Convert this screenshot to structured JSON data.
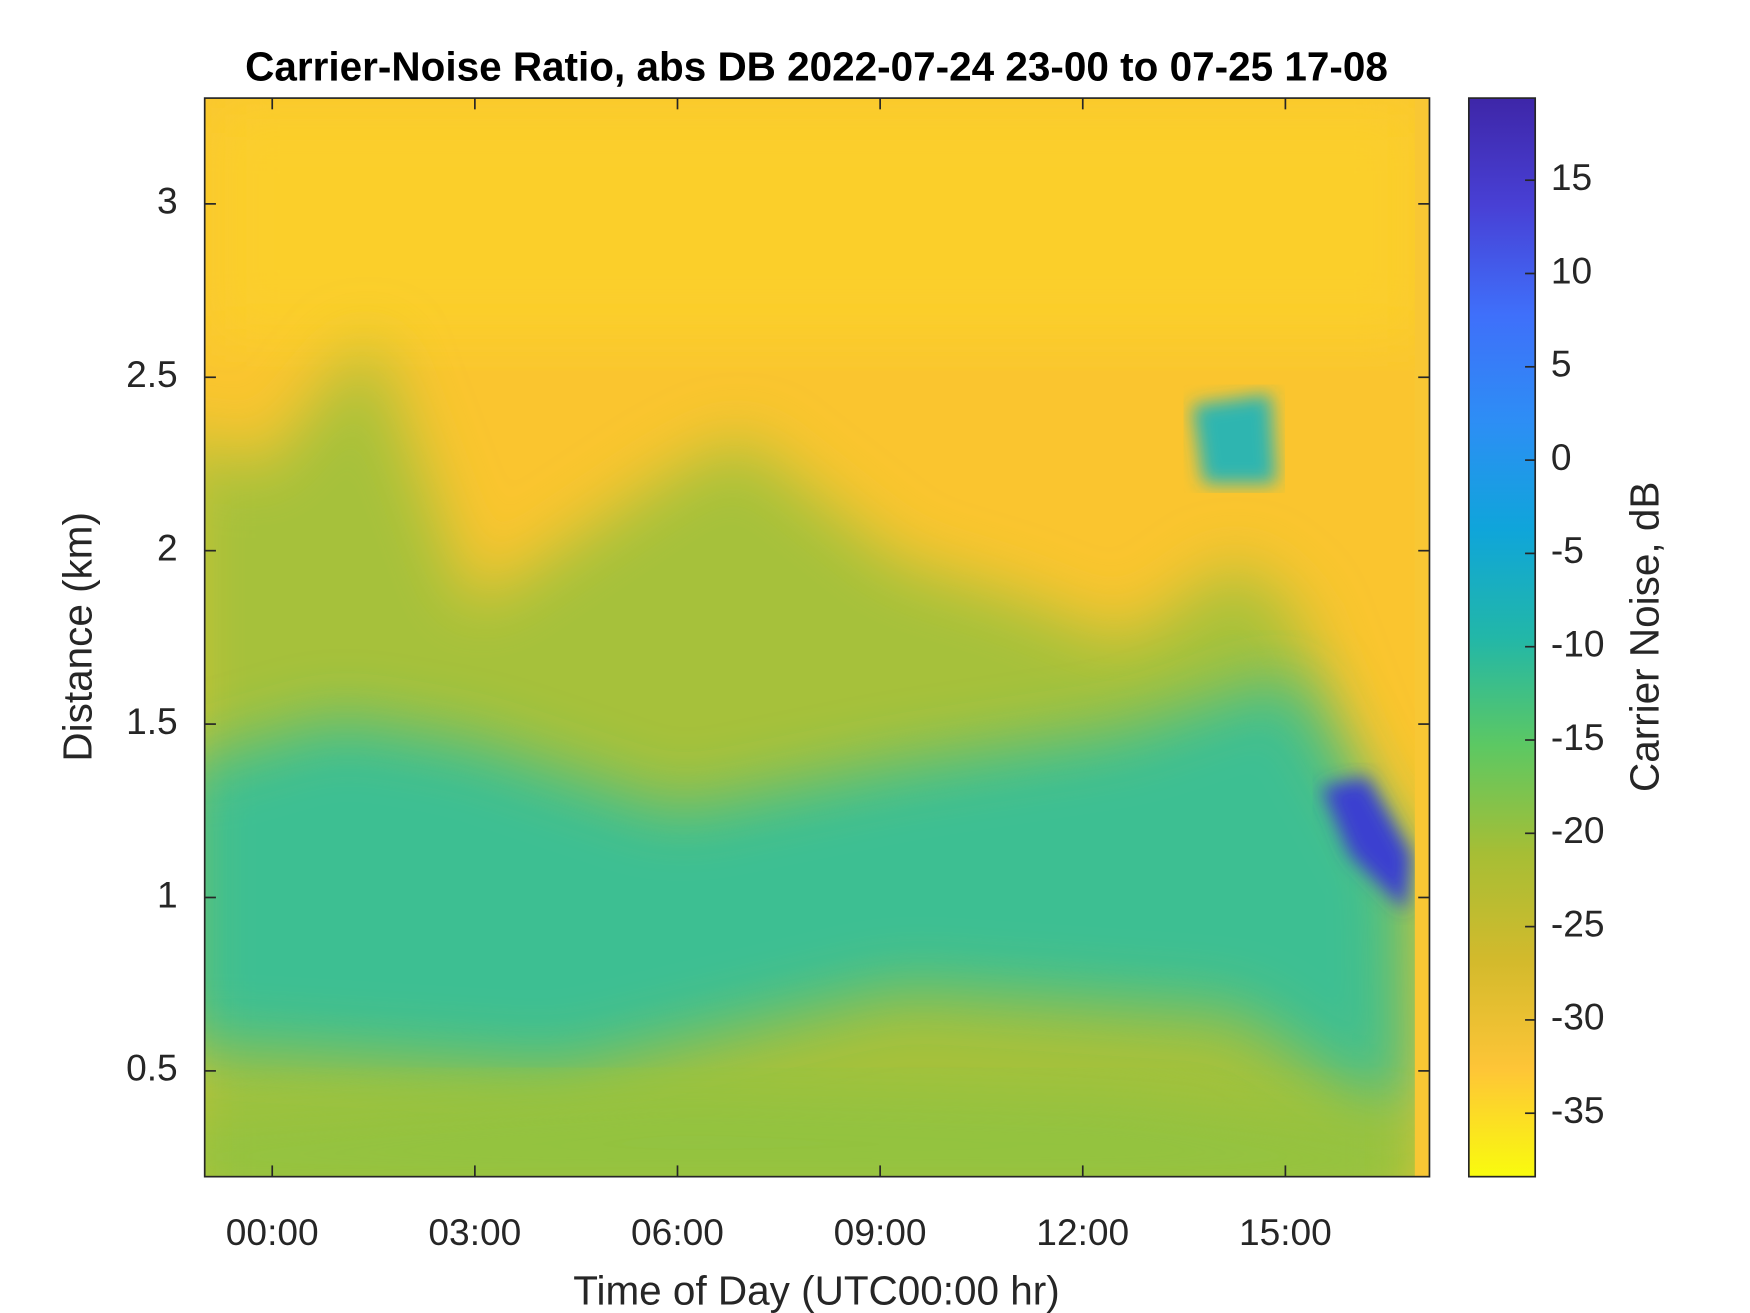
{
  "chart_data": {
    "type": "heatmap",
    "title": "Carrier-Noise Ratio, abs DB 2022-07-24 23-00 to 07-25 17-08",
    "x_label": "Time of Day (UTC00:00 hr)",
    "y_label": "Distance (km)",
    "colorbar_label": "Carrier Noise, dB",
    "colormap": [
      "#f9fb0e",
      "#fec537",
      "#d3ba2c",
      "#a6be35",
      "#5cc863",
      "#22b7a8",
      "#0fa5da",
      "#2d8ef5",
      "#3f6ffa",
      "#4840d5",
      "#3e26a8"
    ],
    "xlim": [
      -1,
      17.133
    ],
    "xticks": [
      {
        "value": 0,
        "label": "00:00"
      },
      {
        "value": 3,
        "label": "03:00"
      },
      {
        "value": 6,
        "label": "06:00"
      },
      {
        "value": 9,
        "label": "09:00"
      },
      {
        "value": 12,
        "label": "12:00"
      },
      {
        "value": 15,
        "label": "15:00"
      }
    ],
    "ylim": [
      0.195,
      3.305
    ],
    "yticks": [
      0.5,
      1,
      1.5,
      2,
      2.5,
      3
    ],
    "clim": [
      -38.4,
      19.4
    ],
    "cticks": [
      -35,
      -30,
      -25,
      -20,
      -15,
      -10,
      -5,
      0,
      5,
      10,
      15
    ]
  }
}
